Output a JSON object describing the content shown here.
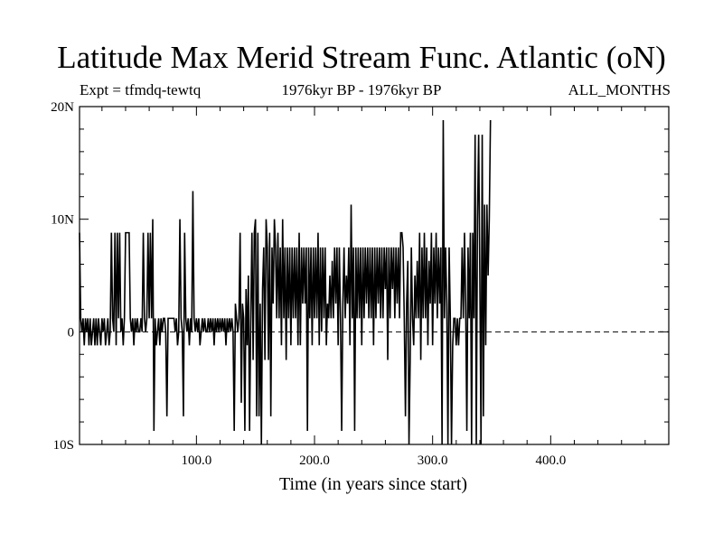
{
  "chart_data": {
    "type": "line",
    "title": "Latitude Max Merid Stream Func. Atlantic (oN)",
    "header_left": "Expt = tfmdq-tewtq",
    "header_center": "1976kyr BP - 1976kyr BP",
    "header_right": "ALL_MONTHS",
    "xlabel": "Time (in years since start)",
    "ylabel": "",
    "xlim": [
      1,
      500
    ],
    "ylim": [
      -10,
      20
    ],
    "x_ticks": [
      {
        "value": 100,
        "label": "100.0"
      },
      {
        "value": 200,
        "label": "200.0"
      },
      {
        "value": 300,
        "label": "300.0"
      },
      {
        "value": 400,
        "label": "400.0"
      }
    ],
    "y_ticks": [
      {
        "value": -10,
        "label": "10S"
      },
      {
        "value": 0,
        "label": "0"
      },
      {
        "value": 10,
        "label": "10N"
      },
      {
        "value": 20,
        "label": "20N"
      }
    ],
    "zero_line": "dashed",
    "grid": false,
    "series": [
      {
        "values": [
          8.8,
          1.2,
          0,
          1.2,
          -1.2,
          1.2,
          0,
          1.2,
          -1.2,
          1.2,
          -1.2,
          0,
          1.2,
          -1.2,
          1.2,
          -1.2,
          1.2,
          0,
          -1.2,
          1.2,
          0,
          1.2,
          -1.2,
          0,
          1.2,
          -1.2,
          0,
          8.8,
          1.2,
          0,
          8.8,
          -1.2,
          8.8,
          1.2,
          8.8,
          0,
          1.2,
          -1.2,
          1.2,
          8.8,
          8.8,
          8.8,
          8.8,
          1.2,
          0,
          1.2,
          -1.2,
          1.2,
          0,
          1.2,
          0,
          0,
          1.2,
          0,
          8.8,
          1.2,
          0,
          1.2,
          8.8,
          1.2,
          8.8,
          1.2,
          10,
          -8.8,
          1.2,
          -1.2,
          0,
          1.2,
          -1.2,
          1.2,
          0,
          1.2,
          1.2,
          0,
          -7.5,
          1.2,
          1.2,
          1.2,
          1.2,
          1.2,
          1.2,
          0,
          1.2,
          -1.2,
          0,
          10,
          1.2,
          0,
          -7.5,
          8.8,
          1.2,
          0,
          1.2,
          -1.2,
          1.2,
          0,
          12.5,
          1.2,
          0,
          1.2,
          0,
          1.2,
          -1.2,
          0,
          1.2,
          0,
          1.2,
          0,
          0,
          1.2,
          0,
          1.2,
          0,
          1.2,
          -1.2,
          1.2,
          0,
          1.2,
          0,
          1.2,
          0,
          1.2,
          0,
          1.2,
          -1.2,
          1.2,
          0,
          1.2,
          0,
          1.2,
          0,
          -8.8,
          2.5,
          1.2,
          0,
          1.2,
          8.8,
          -6.3,
          2.5,
          1.2,
          -8.8,
          3.8,
          -1.2,
          5,
          -8.8,
          1.2,
          8.8,
          -2.5,
          8.8,
          10,
          -7.5,
          8.8,
          -7.5,
          2.5,
          -10,
          3.8,
          7.5,
          -2.5,
          10,
          7.5,
          -2.5,
          8.8,
          -7.5,
          7.5,
          2.5,
          10,
          7.5,
          1.2,
          8.8,
          1.2,
          7.5,
          -1.2,
          10,
          1.2,
          7.5,
          -2.5,
          7.5,
          1.2,
          7.5,
          -1.2,
          7.5,
          1.2,
          7.5,
          1.2,
          7.5,
          -1.2,
          8.8,
          -1.2,
          7.5,
          2.5,
          7.5,
          2.5,
          7.5,
          -8.8,
          7.5,
          1.2,
          7.5,
          -1.2,
          7.5,
          1.2,
          7.5,
          1.2,
          8.8,
          -1.2,
          7.5,
          0,
          7.5,
          1.2,
          7.5,
          -1.2,
          2.5,
          1.2,
          5,
          1.2,
          6.3,
          1.2,
          7.5,
          2.5,
          7.5,
          -1.2,
          7.5,
          1.2,
          -8.8,
          2.5,
          7.5,
          1.2,
          5,
          2.5,
          7.5,
          -1.2,
          11.3,
          1.2,
          7.5,
          -8.8,
          7.5,
          1.2,
          7.5,
          1.2,
          7.5,
          -1.2,
          7.5,
          1.2,
          7.5,
          2.5,
          7.5,
          1.2,
          7.5,
          1.2,
          7.5,
          -1.2,
          7.5,
          1.2,
          7.5,
          2.5,
          7.5,
          1.2,
          7.5,
          1.2,
          7.5,
          3.8,
          7.5,
          -2.5,
          7.5,
          1.2,
          7.5,
          3.8,
          7.5,
          1.2,
          7.5,
          2.5,
          7.5,
          1.2,
          8.8,
          8.8,
          7.5,
          1.2,
          -7.5,
          2.5,
          6.3,
          -10,
          -2.5,
          7.5,
          1.2,
          -1.2,
          5,
          1.2,
          6.3,
          1.2,
          8.8,
          -2.5,
          7.5,
          1.2,
          8.8,
          1.2,
          7.5,
          -1.2,
          6.3,
          2.5,
          8.8,
          -1.2,
          7.5,
          2.5,
          8.8,
          1.2,
          7.5,
          2.5,
          7.5,
          -10,
          18.8,
          1.2,
          7.5,
          2.5,
          -10,
          7.5,
          1.2,
          -10,
          -1.2,
          1.2,
          1.2,
          -1.2,
          1.2,
          -1.2,
          1.2,
          1.2,
          7.5,
          1.2,
          8.8,
          2.5,
          -8.8,
          7.5,
          1.2,
          8.8,
          -10,
          8.8,
          1.2,
          17.5,
          -10,
          10,
          17.5,
          5,
          -10,
          17.5,
          -7.5,
          11.3,
          -1.2,
          11.3,
          5,
          10,
          18.8
        ]
      }
    ]
  }
}
